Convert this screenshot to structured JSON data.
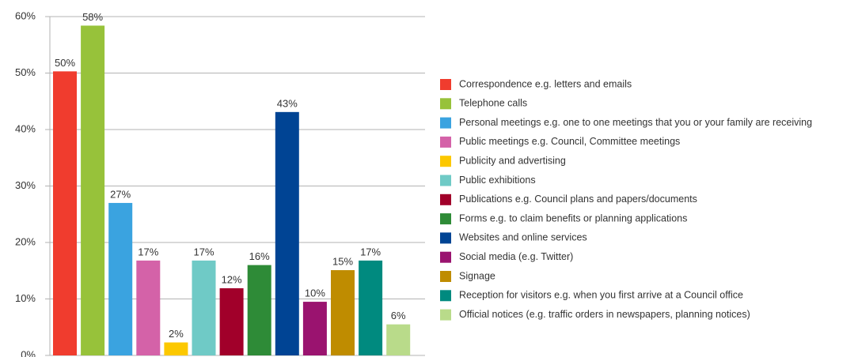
{
  "chart_data": {
    "type": "bar",
    "series": [
      {
        "name": "Correspondence e.g. letters and emails",
        "color": "#f03c2e",
        "values": [
          50.3
        ],
        "value_labels": [
          "50%"
        ]
      },
      {
        "name": "Telephone calls",
        "color": "#97c23a",
        "values": [
          58.4
        ],
        "value_labels": [
          "58%"
        ]
      },
      {
        "name": "Personal meetings e.g. one to one meetings that you or your family are receiving",
        "color": "#3aa3e0",
        "values": [
          27
        ],
        "value_labels": [
          "27%"
        ]
      },
      {
        "name": "Public meetings e.g. Council, Committee meetings",
        "color": "#d462a8",
        "values": [
          16.8
        ],
        "value_labels": [
          "17%"
        ]
      },
      {
        "name": "Publicity and advertising",
        "color": "#fcc800",
        "values": [
          2.3
        ],
        "value_labels": [
          "2%"
        ]
      },
      {
        "name": "Public exhibitions",
        "color": "#6fcac6",
        "values": [
          16.8
        ],
        "value_labels": [
          "17%"
        ]
      },
      {
        "name": "Publications e.g. Council plans and papers/documents",
        "color": "#a1002a",
        "values": [
          11.9
        ],
        "value_labels": [
          "12%"
        ]
      },
      {
        "name": "Forms e.g. to claim benefits or planning applications",
        "color": "#2e8b37",
        "values": [
          16
        ],
        "value_labels": [
          "16%"
        ]
      },
      {
        "name": "Websites and online services",
        "color": "#004494",
        "values": [
          43.1
        ],
        "value_labels": [
          "43%"
        ]
      },
      {
        "name": "Social media (e.g. Twitter)",
        "color": "#9a136f",
        "values": [
          9.5
        ],
        "value_labels": [
          "10%"
        ]
      },
      {
        "name": "Signage",
        "color": "#bf8c00",
        "values": [
          15.1
        ],
        "value_labels": [
          "15%"
        ]
      },
      {
        "name": "Reception for visitors e.g. when you first arrive at a Council office",
        "color": "#008a7f",
        "values": [
          16.8
        ],
        "value_labels": [
          "17%"
        ]
      },
      {
        "name": "Official notices (e.g. traffic orders in newspapers, planning notices)",
        "color": "#b9db8a",
        "values": [
          5.5
        ],
        "value_labels": [
          "6%"
        ]
      }
    ],
    "ylim": [
      0,
      60
    ],
    "yticks": [
      {
        "value": 0,
        "label": "0%"
      },
      {
        "value": 10,
        "label": "10%"
      },
      {
        "value": 20,
        "label": "20%"
      },
      {
        "value": 30,
        "label": "30%"
      },
      {
        "value": 40,
        "label": "40%"
      },
      {
        "value": 50,
        "label": "50%"
      },
      {
        "value": 60,
        "label": "60%"
      }
    ],
    "grid": true,
    "legend": "right"
  }
}
